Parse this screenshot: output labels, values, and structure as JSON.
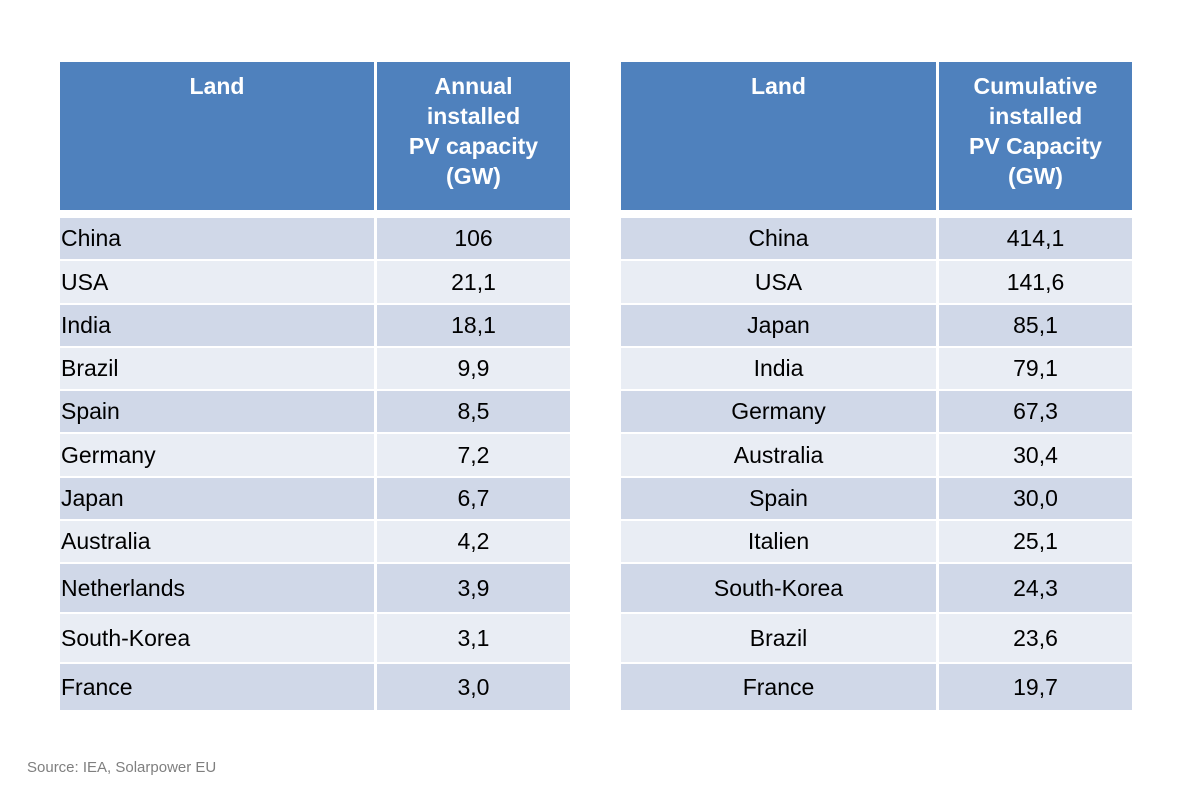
{
  "annual_table": {
    "headers": [
      "Land",
      "Annual installed PV capacity (GW)"
    ],
    "header_lines": [
      [
        "Land"
      ],
      [
        "Annual",
        "installed",
        "PV capacity",
        "(GW)"
      ]
    ],
    "rows": [
      [
        "China",
        "106"
      ],
      [
        "USA",
        "21,1"
      ],
      [
        "India",
        "18,1"
      ],
      [
        "Brazil",
        "9,9"
      ],
      [
        "Spain",
        "8,5"
      ],
      [
        "Germany",
        "7,2"
      ],
      [
        "Japan",
        "6,7"
      ],
      [
        "Australia",
        "4,2"
      ],
      [
        "Netherlands",
        "3,9"
      ],
      [
        "South-Korea",
        "3,1"
      ],
      [
        "France",
        "3,0"
      ]
    ]
  },
  "cumulative_table": {
    "headers": [
      "Land",
      "Cumulative installed PV Capacity (GW)"
    ],
    "header_lines": [
      [
        "Land"
      ],
      [
        "Cumulative",
        "installed",
        "PV Capacity",
        "(GW)"
      ]
    ],
    "rows": [
      [
        "China",
        "414,1"
      ],
      [
        "USA",
        "141,6"
      ],
      [
        "Japan",
        "85,1"
      ],
      [
        "India",
        "79,1"
      ],
      [
        "Germany",
        "67,3"
      ],
      [
        "Australia",
        "30,4"
      ],
      [
        "Spain",
        "30,0"
      ],
      [
        "Italien",
        "25,1"
      ],
      [
        "South-Korea",
        "24,3"
      ],
      [
        "Brazil",
        "23,6"
      ],
      [
        "France",
        "19,7"
      ]
    ]
  },
  "source_note": "Source: IEA, Solarpower EU",
  "colors": {
    "header_bg": "#4f81bd",
    "header_text": "#ffffff",
    "row_odd_bg": "#d0d8e8",
    "row_even_bg": "#e9edf4",
    "source_text": "#7f7f7f"
  }
}
